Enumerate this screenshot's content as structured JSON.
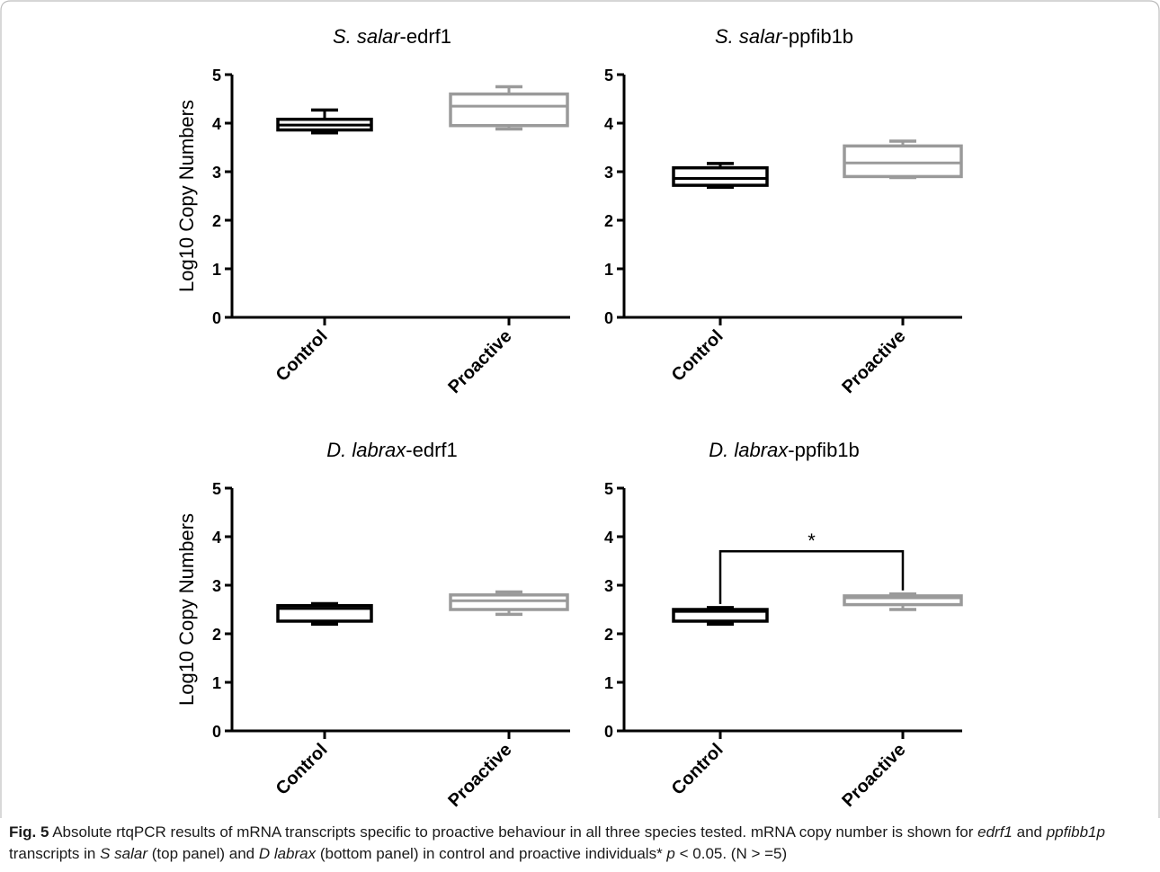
{
  "figure": {
    "y_axis_label": "Log10 Copy Numbers",
    "categories": [
      "Control",
      "Proactive"
    ],
    "significance_marker": "*"
  },
  "caption": {
    "fig_label": "Fig. 5",
    "text_1": " Absolute rtqPCR results of mRNA transcripts specific to proactive behaviour in all three species tested. mRNA copy number is shown for ",
    "gene_1": "edrf1",
    "text_2": " and ",
    "gene_2": "ppfibb1p",
    "text_3": " transcripts in ",
    "species_1": "S salar",
    "text_4": " (top panel) and ",
    "species_2": "D labrax",
    "text_5": " (bottom panel) in control and proactive individuals* ",
    "p_symbol": "p",
    "text_6": " < 0.05. (N > =5)"
  },
  "colors": {
    "control": "#000000",
    "proactive": "#9a9a9a",
    "axis": "#000000"
  },
  "chart_data": [
    {
      "type": "box",
      "title_species": "S. salar",
      "title_gene": "-edrf1",
      "ylabel": "Log10 Copy Numbers",
      "ylim": [
        0,
        5
      ],
      "yticks": [
        "0",
        "1",
        "2",
        "3",
        "4",
        "5"
      ],
      "categories": [
        "Control",
        "Proactive"
      ],
      "boxes": [
        {
          "name": "Control",
          "min": 3.8,
          "q1": 3.86,
          "median": 3.96,
          "q3": 4.08,
          "max": 4.27
        },
        {
          "name": "Proactive",
          "min": 3.88,
          "q1": 3.95,
          "median": 4.35,
          "q3": 4.6,
          "max": 4.75
        }
      ]
    },
    {
      "type": "box",
      "title_species": "S. salar",
      "title_gene": "-ppfib1b",
      "ylabel": "",
      "ylim": [
        0,
        5
      ],
      "yticks": [
        "0",
        "1",
        "2",
        "3",
        "4",
        "5"
      ],
      "categories": [
        "Control",
        "Proactive"
      ],
      "boxes": [
        {
          "name": "Control",
          "min": 2.68,
          "q1": 2.72,
          "median": 2.86,
          "q3": 3.08,
          "max": 3.17
        },
        {
          "name": "Proactive",
          "min": 2.88,
          "q1": 2.9,
          "median": 3.18,
          "q3": 3.53,
          "max": 3.63
        }
      ]
    },
    {
      "type": "box",
      "title_species": "D. labrax",
      "title_gene": "-edrf1",
      "ylabel": "Log10 Copy Numbers",
      "ylim": [
        0,
        5
      ],
      "yticks": [
        "0",
        "1",
        "2",
        "3",
        "4",
        "5"
      ],
      "categories": [
        "Control",
        "Proactive"
      ],
      "boxes": [
        {
          "name": "Control",
          "min": 2.2,
          "q1": 2.26,
          "median": 2.52,
          "q3": 2.58,
          "max": 2.62
        },
        {
          "name": "Proactive",
          "min": 2.4,
          "q1": 2.5,
          "median": 2.68,
          "q3": 2.8,
          "max": 2.86
        }
      ]
    },
    {
      "type": "box",
      "title_species": "D. labrax",
      "title_gene": "-ppfib1b",
      "ylabel": "",
      "ylim": [
        0,
        5
      ],
      "yticks": [
        "0",
        "1",
        "2",
        "3",
        "4",
        "5"
      ],
      "categories": [
        "Control",
        "Proactive"
      ],
      "boxes": [
        {
          "name": "Control",
          "min": 2.2,
          "q1": 2.26,
          "median": 2.46,
          "q3": 2.5,
          "max": 2.54
        },
        {
          "name": "Proactive",
          "min": 2.5,
          "q1": 2.6,
          "median": 2.74,
          "q3": 2.78,
          "max": 2.82
        }
      ],
      "significance": {
        "from": "Control",
        "to": "Proactive",
        "y": 3.7,
        "label": "*"
      }
    }
  ]
}
